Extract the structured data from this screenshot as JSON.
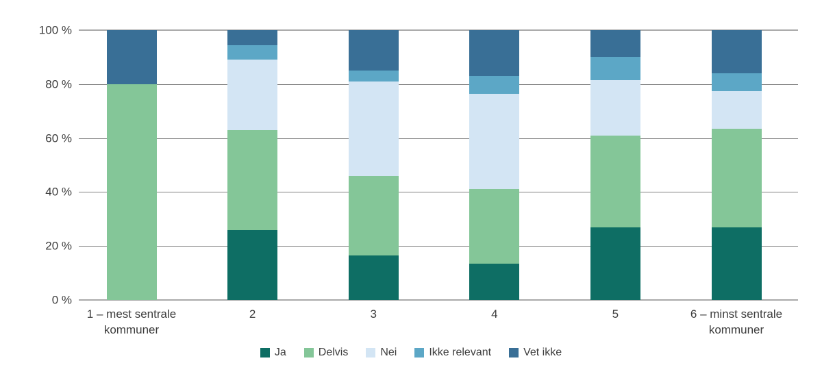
{
  "chart_data": {
    "type": "bar",
    "subtype": "stacked-vertical-100pct",
    "title": "",
    "xlabel": "",
    "ylabel": "",
    "ylim": [
      0,
      100
    ],
    "grid": true,
    "legend_position": "bottom",
    "y_ticks": [
      "100 %",
      "80 %",
      "60 %",
      "40 %",
      "20 %",
      "0 %"
    ],
    "categories": [
      "1 – mest sentrale kommuner",
      "2",
      "3",
      "4",
      "5",
      "6 – minst sentrale kommuner"
    ],
    "series": [
      {
        "name": "Ja",
        "color": "#0E6E64",
        "values": [
          0,
          26,
          16.5,
          13.5,
          27,
          27
        ]
      },
      {
        "name": "Delvis",
        "color": "#84C698",
        "values": [
          80,
          37,
          29.5,
          27.5,
          34,
          36.5
        ]
      },
      {
        "name": "Nei",
        "color": "#D3E5F4",
        "values": [
          0,
          26,
          35,
          35.5,
          20.5,
          14
        ]
      },
      {
        "name": "Ikke relevant",
        "color": "#5CA7C6",
        "values": [
          0,
          5.5,
          4,
          6.5,
          8.5,
          6.5
        ]
      },
      {
        "name": "Vet ikke",
        "color": "#396F96",
        "values": [
          20,
          5.5,
          15,
          17,
          10,
          16
        ]
      }
    ]
  },
  "colors": {
    "gridline": "#7e7e7e",
    "text": "#3d3d3d",
    "background": "#ffffff"
  }
}
